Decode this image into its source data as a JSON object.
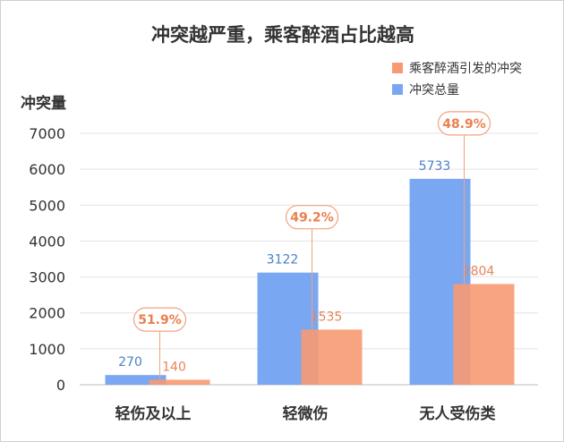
{
  "chart_data": {
    "type": "bar",
    "title": "冲突越严重，乘客醉酒占比越高",
    "ylabel": "冲突量",
    "xlabel": "",
    "categories": [
      "轻伤及以上",
      "轻微伤",
      "无人受伤类"
    ],
    "series": [
      {
        "name": "冲突总量",
        "values": [
          270,
          3122,
          5733
        ],
        "color": "#7aa7f2"
      },
      {
        "name": "乘客醉酒引发的冲突",
        "values": [
          140,
          1535,
          2804
        ],
        "color": "#f79a72"
      }
    ],
    "percent_labels": [
      "51.9%",
      "49.2%",
      "48.9%"
    ],
    "ylim": [
      0,
      7000
    ],
    "yticks": [
      0,
      1000,
      2000,
      3000,
      4000,
      5000,
      6000,
      7000
    ],
    "grid": true,
    "legend_position": "top-right"
  }
}
